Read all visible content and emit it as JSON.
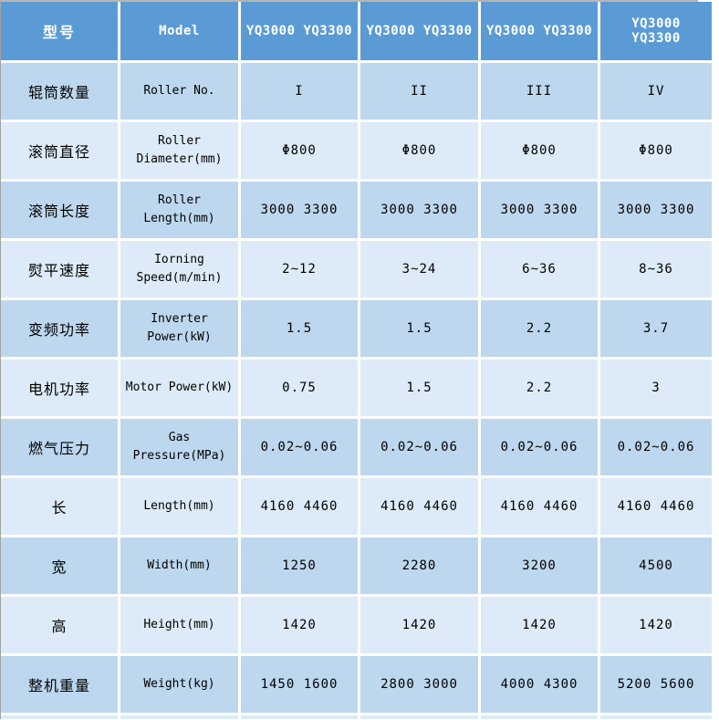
{
  "table": {
    "header": {
      "type_label_cn": "型号",
      "type_label_en": "Model",
      "models": [
        "YQ3000 YQ3300",
        "YQ3000 YQ3300",
        "YQ3000 YQ3300",
        "YQ3000 YQ3300"
      ]
    },
    "rows": [
      {
        "cn": "辊筒数量",
        "en": "Roller No.",
        "values": [
          "I",
          "II",
          "III",
          "IV"
        ]
      },
      {
        "cn": "滚筒直径",
        "en": "Roller Diameter(mm)",
        "values": [
          "Φ800",
          "Φ800",
          "Φ800",
          "Φ800"
        ]
      },
      {
        "cn": "滚筒长度",
        "en": "Roller Length(mm)",
        "values": [
          "3000 3300",
          "3000 3300",
          "3000 3300",
          "3000 3300"
        ]
      },
      {
        "cn": "熨平速度",
        "en": "Iorning Speed(m/min)",
        "values": [
          "2~12",
          "3~24",
          "6~36",
          "8~36"
        ]
      },
      {
        "cn": "变频功率",
        "en": "Inverter Power(kW)",
        "values": [
          "1.5",
          "1.5",
          "2.2",
          "3.7"
        ]
      },
      {
        "cn": "电机功率",
        "en": "Motor Power(kW)",
        "values": [
          "0.75",
          "1.5",
          "2.2",
          "3"
        ]
      },
      {
        "cn": "燃气压力",
        "en": "Gas Pressure(MPa)",
        "values": [
          "0.02~0.06",
          "0.02~0.06",
          "0.02~0.06",
          "0.02~0.06"
        ]
      },
      {
        "cn": "长",
        "en": "Length(mm)",
        "values": [
          "4160 4460",
          "4160 4460",
          "4160 4460",
          "4160 4460"
        ]
      },
      {
        "cn": "宽",
        "en": "Width(mm)",
        "values": [
          "1250",
          "2280",
          "3200",
          "4500"
        ]
      },
      {
        "cn": "高",
        "en": "Height(mm)",
        "values": [
          "1420",
          "1420",
          "1420",
          "1420"
        ],
        "highlight": true
      },
      {
        "cn": "整机重量",
        "en": "Weight(kg)",
        "values": [
          "1450 1600",
          "2800 3000",
          "4000 4300",
          "5200 5600"
        ]
      }
    ],
    "colors": {
      "header_bg": "#5b9bd5",
      "header_text": "#ffffff",
      "band_dark": "#bdd7ee",
      "band_light": "#dcebf7",
      "gridline": "#ffffff",
      "top_border": "#b6b6b6",
      "left_border": "#a3a3a3",
      "highlight_green": "#46a346",
      "body_text": "#000000"
    }
  }
}
